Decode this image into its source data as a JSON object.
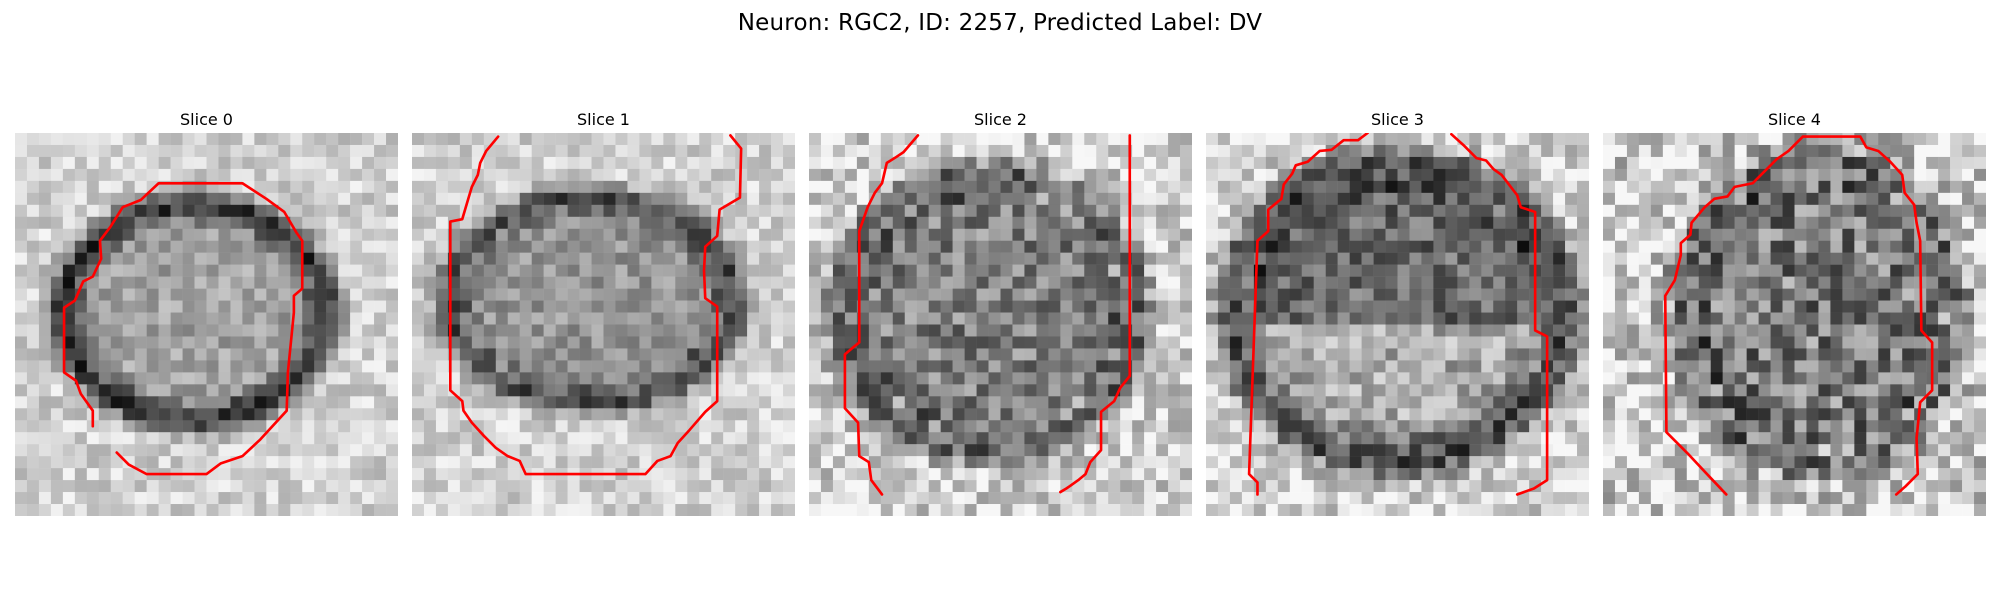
{
  "figure": {
    "title": "Neuron: RGC2, ID: 2257, Predicted Label: DV"
  },
  "panels": [
    {
      "title": "Slice 0"
    },
    {
      "title": "Slice 1"
    },
    {
      "title": "Slice 2"
    },
    {
      "title": "Slice 3"
    },
    {
      "title": "Slice 4"
    }
  ],
  "colors": {
    "contour": "#ff0000",
    "background": "#ffffff"
  }
}
